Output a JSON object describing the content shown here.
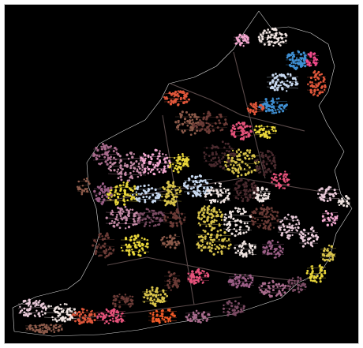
{
  "map": {
    "background": "#000000",
    "frame_border": "#cfcfcf",
    "road_color": "#d9d9d9",
    "road_dark": "#5a4a4a",
    "cluster_palette": [
      "#e8c9d8",
      "#f2a7cf",
      "#e5527a",
      "#ef4a8a",
      "#e0563a",
      "#f05a28",
      "#3f8fd2",
      "#c7d8ef",
      "#e9d63a",
      "#d7c24a",
      "#8c5a4a",
      "#6b3b36",
      "#4a2a2e",
      "#a86b8c",
      "#c48aa6",
      "#9b5e86",
      "#efe3e0",
      "#7a4b63"
    ]
  }
}
